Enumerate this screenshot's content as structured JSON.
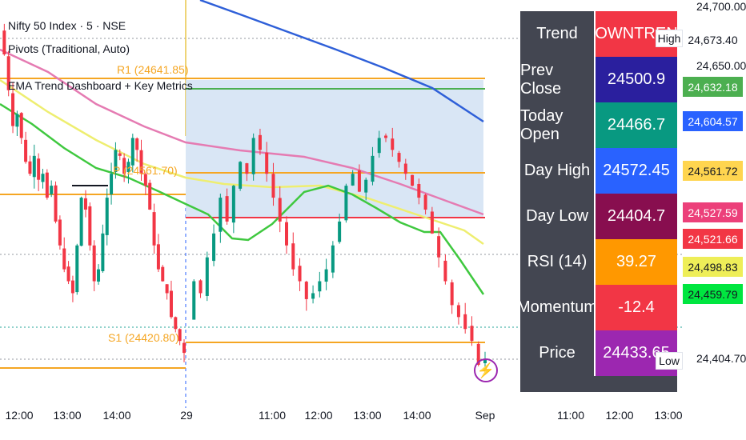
{
  "legend": {
    "symbol_line": "Nifty 50 Index · 5 · NSE",
    "pivots_line": "Pivots (Traditional, Auto)",
    "dashboard_line": "EMA Trend Dashboard + Key Metrics"
  },
  "pivot_labels": {
    "r1": "R1 (24641.85)",
    "p": "P (24561.70)",
    "s1": "S1 (24420.80)"
  },
  "dashboard": {
    "rows": [
      {
        "label": "Trend",
        "value": "DOWNTREND",
        "color": "#f23645"
      },
      {
        "label": "Prev Close",
        "value": "24500.9",
        "color": "#2a1f9e"
      },
      {
        "label": "Today Open",
        "value": "24466.7",
        "color": "#089981"
      },
      {
        "label": "Day High",
        "value": "24572.45",
        "color": "#2962ff"
      },
      {
        "label": "Day Low",
        "value": "24404.7",
        "color": "#880e4f"
      },
      {
        "label": "RSI (14)",
        "value": "39.27",
        "color": "#ff9800"
      },
      {
        "label": "Momentum",
        "value": "-12.4",
        "color": "#f23645"
      },
      {
        "label": "Price",
        "value": "24433.65",
        "color": "#9c27b0"
      }
    ]
  },
  "price_axis": {
    "ticks": [
      "24,700.00",
      "24,650.00",
      "24,404.70"
    ],
    "tags": [
      {
        "text": "24,673.40",
        "bg": "#ffffff",
        "fg": "#131722"
      },
      {
        "text": "24,632.18",
        "bg": "#4caf50",
        "fg": "#ffffff"
      },
      {
        "text": "24,604.57",
        "bg": "#2962ff",
        "fg": "#ffffff"
      },
      {
        "text": "24,561.72",
        "bg": "#ffd54f",
        "fg": "#131722"
      },
      {
        "text": "24,527.59",
        "bg": "#ec407a",
        "fg": "#ffffff"
      },
      {
        "text": "24,521.66",
        "bg": "#f23645",
        "fg": "#ffffff"
      },
      {
        "text": "24,498.83",
        "bg": "#eeee58",
        "fg": "#131722"
      },
      {
        "text": "24,459.79",
        "bg": "#00e640",
        "fg": "#131722"
      }
    ],
    "high_label": "High",
    "low_label": "Low"
  },
  "time_axis": [
    "12:00",
    "13:00",
    "14:00",
    "29",
    "11:00",
    "12:00",
    "13:00",
    "14:00",
    "Sep",
    "11:00",
    "12:00",
    "13:00"
  ],
  "colors": {
    "up": "#089981",
    "down": "#f23645",
    "ema_green": "#3fc83f",
    "ema_yellow": "#eeee70",
    "ema_pink": "#e57bb2",
    "ema_blue": "#2e5fd8",
    "pivot_orange": "#f5a623"
  },
  "icons": {
    "flash": "lightning-icon"
  }
}
